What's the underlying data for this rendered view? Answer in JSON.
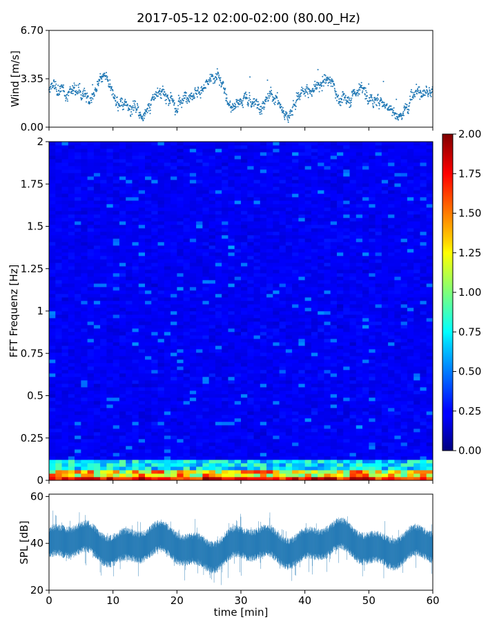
{
  "title": "2017-05-12 02:00-02:00 (80.00_Hz)",
  "chart_data": [
    {
      "name": "wind",
      "type": "scatter",
      "ylabel": "Wind [m/s]",
      "xlim": [
        0,
        60
      ],
      "ylim": [
        0,
        6.7
      ],
      "yticks": [
        0.0,
        3.35,
        6.7
      ],
      "ytick_labels": [
        "0.00",
        "3.35",
        "6.70"
      ],
      "color": "#1f77b4"
    },
    {
      "name": "spectrogram",
      "type": "heatmap",
      "ylabel": "FFT Frequenz [Hz]",
      "xlim": [
        0,
        60
      ],
      "ylim": [
        0,
        2
      ],
      "yticks": [
        0,
        0.25,
        0.5,
        0.75,
        1,
        1.25,
        1.5,
        1.75,
        2
      ],
      "ytick_labels": [
        "0",
        "0.25",
        "0.5",
        "0.75",
        "1",
        "1.25",
        "1.5",
        "1.75",
        "2"
      ],
      "colormap": "jet",
      "colorbar": {
        "range": [
          0,
          2
        ],
        "ticks": [
          0.0,
          0.25,
          0.5,
          0.75,
          1.0,
          1.25,
          1.5,
          1.75,
          2.0
        ],
        "tick_labels": [
          "0.00",
          "0.25",
          "0.50",
          "0.75",
          "1.00",
          "1.25",
          "1.50",
          "1.75",
          "2.00"
        ]
      }
    },
    {
      "name": "spl",
      "type": "area",
      "ylabel": "SPL [dB]",
      "xlabel": "time [min]",
      "xlim": [
        0,
        60
      ],
      "ylim": [
        20,
        61
      ],
      "yticks": [
        20,
        40,
        60
      ],
      "ytick_labels": [
        "20",
        "40",
        "60"
      ],
      "xticks": [
        0,
        10,
        20,
        30,
        40,
        50,
        60
      ],
      "xtick_labels": [
        "0",
        "10",
        "20",
        "30",
        "40",
        "50",
        "60"
      ],
      "color": "#1f77b4"
    }
  ]
}
